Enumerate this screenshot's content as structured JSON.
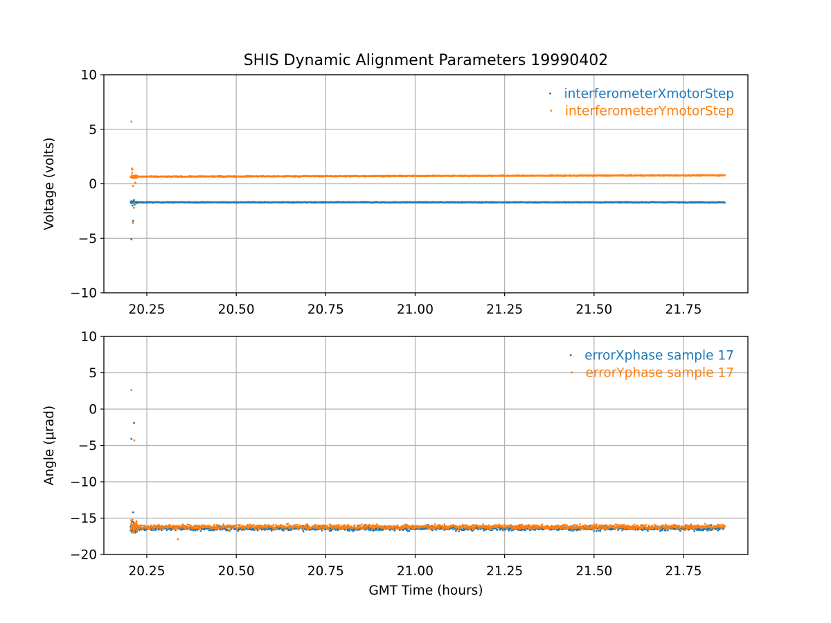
{
  "title": "SHIS Dynamic Alignment Parameters 19990402",
  "xlabel": "GMT Time (hours)",
  "colors": {
    "series1": "#1f77b4",
    "series2": "#ff7f0e",
    "grid": "#b0b0b0",
    "axes": "#000000"
  },
  "chart_data": [
    {
      "type": "scatter",
      "title": "SHIS Dynamic Alignment Parameters 19990402",
      "xlabel": "",
      "ylabel": "Voltage (volts)",
      "xlim": [
        20.13,
        21.93
      ],
      "ylim": [
        -10,
        10
      ],
      "xticks": [
        20.25,
        20.5,
        20.75,
        21.0,
        21.25,
        21.5,
        21.75
      ],
      "xtick_labels": [
        "20.25",
        "20.50",
        "20.75",
        "21.00",
        "21.25",
        "21.50",
        "21.75"
      ],
      "yticks": [
        -10,
        -5,
        0,
        5,
        10
      ],
      "ytick_labels": [
        "−10",
        "−5",
        "0",
        "5",
        "10"
      ],
      "grid": true,
      "legend_position": "top-right",
      "series": [
        {
          "name": "interferometerXmotorStep",
          "color": "#1f77b4",
          "x_range": [
            20.205,
            21.865
          ],
          "y_level": -1.7,
          "y_end": -1.7,
          "spread": 0.05,
          "outliers": [
            {
              "x": 20.207,
              "y": -5.1
            },
            {
              "x": 20.208,
              "y": -1.6
            },
            {
              "x": 20.21,
              "y": -2.0
            },
            {
              "x": 20.212,
              "y": -3.4
            },
            {
              "x": 20.214,
              "y": -1.5
            },
            {
              "x": 20.216,
              "y": -1.9
            }
          ]
        },
        {
          "name": "interferometerYmotorStep",
          "color": "#ff7f0e",
          "x_range": [
            20.205,
            21.865
          ],
          "y_level": 0.65,
          "y_end": 0.78,
          "spread": 0.06,
          "outliers": [
            {
              "x": 20.207,
              "y": 5.7
            },
            {
              "x": 20.208,
              "y": 1.4
            },
            {
              "x": 20.209,
              "y": 1.0
            },
            {
              "x": 20.21,
              "y": 1.3
            },
            {
              "x": 20.211,
              "y": -3.6
            },
            {
              "x": 20.212,
              "y": -0.2
            },
            {
              "x": 20.214,
              "y": -2.2
            },
            {
              "x": 20.216,
              "y": -1.8
            },
            {
              "x": 20.218,
              "y": 0.1
            }
          ]
        }
      ]
    },
    {
      "type": "scatter",
      "title": "",
      "xlabel": "GMT Time (hours)",
      "ylabel": "Angle (μrad)",
      "xlim": [
        20.13,
        21.93
      ],
      "ylim": [
        -20,
        10
      ],
      "xticks": [
        20.25,
        20.5,
        20.75,
        21.0,
        21.25,
        21.5,
        21.75
      ],
      "xtick_labels": [
        "20.25",
        "20.50",
        "20.75",
        "21.00",
        "21.25",
        "21.50",
        "21.75"
      ],
      "yticks": [
        -20,
        -15,
        -10,
        -5,
        0,
        5,
        10
      ],
      "ytick_labels": [
        "−20",
        "−15",
        "−10",
        "−5",
        "0",
        "5",
        "10"
      ],
      "grid": true,
      "legend_position": "top-right",
      "series": [
        {
          "name": "errorXphase sample 17",
          "color": "#1f77b4",
          "x_range": [
            20.205,
            21.865
          ],
          "y_level": -16.4,
          "y_end": -16.4,
          "spread": 0.45,
          "outliers": [
            {
              "x": 20.207,
              "y": -4.1
            },
            {
              "x": 20.214,
              "y": -1.9
            },
            {
              "x": 20.212,
              "y": -14.2
            },
            {
              "x": 20.209,
              "y": -15.5
            }
          ]
        },
        {
          "name": "errorYphase sample 17",
          "color": "#ff7f0e",
          "x_range": [
            20.205,
            21.865
          ],
          "y_level": -16.2,
          "y_end": -16.2,
          "spread": 0.45,
          "outliers": [
            {
              "x": 20.207,
              "y": 2.6
            },
            {
              "x": 20.215,
              "y": -4.3
            },
            {
              "x": 20.337,
              "y": -17.9
            },
            {
              "x": 20.21,
              "y": -15.2
            }
          ]
        }
      ]
    }
  ]
}
